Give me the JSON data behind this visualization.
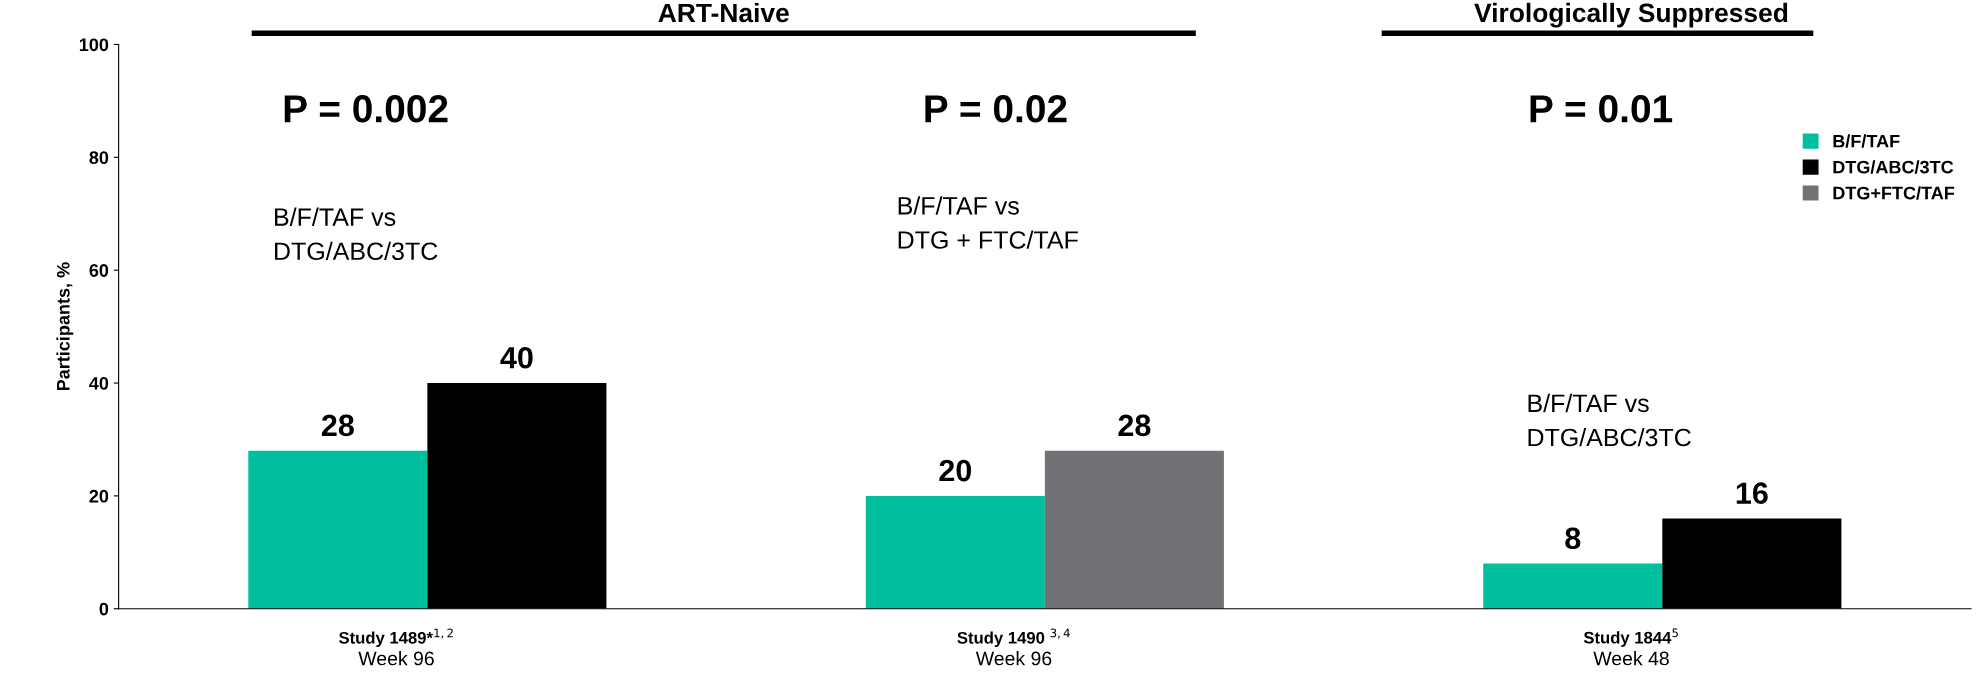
{
  "chart_data": {
    "type": "bar",
    "categories": [
      "Study 1489*$^{1,2}$\nWeek 96",
      "Study 1490 $^{3,4}$\nWeek 96",
      "Study 1844$^{5}$\nWeek 48"
    ],
    "series": [
      {
        "name": "B/F/TAF",
        "color": "#00bf9f",
        "values": [
          28,
          20,
          8
        ]
      },
      {
        "name": "DTG/ABC/3TC",
        "color": "#000000",
        "values": [
          40,
          null,
          16
        ]
      },
      {
        "name": "DTG+FTC/TAF",
        "color": "#727176",
        "values": [
          null,
          28,
          null
        ]
      }
    ],
    "ylabel": "Participants, %",
    "ylim": [
      0,
      100
    ],
    "yticks": [
      0,
      20,
      40,
      60,
      80,
      100
    ],
    "data_labels": true,
    "grid": false,
    "legend": "right",
    "annotations": [
      "ART-Naive",
      "Virologically Suppressed",
      "P = 0.002",
      "P = 0.02",
      "P = 0.01",
      "B/F/TAF vs\nDTG/ABC/3TC",
      "B/F/TAF vs\nDTG + FTC/TAF",
      "B/F/TAF vs\nDTG/ABC/3TC"
    ]
  }
}
